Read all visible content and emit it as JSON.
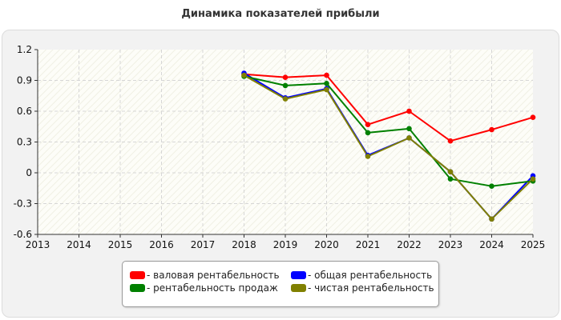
{
  "title": "Динамика показателей прибыли",
  "chart_data": {
    "type": "line",
    "x": [
      "2013",
      "2014",
      "2015",
      "2016",
      "2017",
      "2018",
      "2019",
      "2020",
      "2021",
      "2022",
      "2023",
      "2024",
      "2025"
    ],
    "ylim": [
      -0.6,
      1.2
    ],
    "yticks": [
      "1.2",
      "0.9",
      "0.6",
      "0.3",
      "0",
      "-0.3",
      "-0.6"
    ],
    "grid": true,
    "legend_position": "bottom",
    "series": [
      {
        "name": "- валовая рентабельность",
        "color": "#ff0000",
        "values": [
          null,
          null,
          null,
          null,
          null,
          0.96,
          0.93,
          0.95,
          0.47,
          0.6,
          0.31,
          0.42,
          0.54
        ]
      },
      {
        "name": "- общая рентабельность",
        "color": "#0000ff",
        "values": [
          null,
          null,
          null,
          null,
          null,
          0.97,
          0.73,
          0.82,
          0.17,
          0.34,
          0.01,
          -0.45,
          -0.03
        ]
      },
      {
        "name": "- рентабельность продаж",
        "color": "#008000",
        "values": [
          null,
          null,
          null,
          null,
          null,
          0.94,
          0.85,
          0.87,
          0.39,
          0.43,
          -0.06,
          -0.13,
          -0.08
        ]
      },
      {
        "name": "- чистая рентабельность",
        "color": "#808000",
        "values": [
          null,
          null,
          null,
          null,
          null,
          0.95,
          0.72,
          0.81,
          0.16,
          0.34,
          0.01,
          -0.45,
          -0.06
        ]
      }
    ]
  }
}
